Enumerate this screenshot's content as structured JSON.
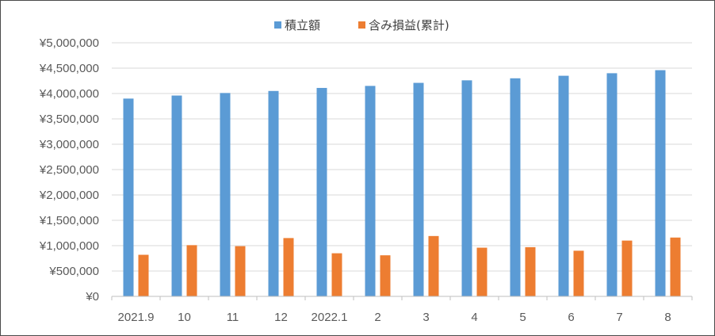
{
  "chart_data": {
    "type": "bar",
    "categories": [
      "2021.9",
      "10",
      "11",
      "12",
      "2022.1",
      "2",
      "3",
      "4",
      "5",
      "6",
      "7",
      "8"
    ],
    "series": [
      {
        "name": "積立額",
        "color": "#5B9BD5",
        "values": [
          3900000,
          3960000,
          4010000,
          4050000,
          4110000,
          4150000,
          4210000,
          4260000,
          4300000,
          4350000,
          4400000,
          4460000
        ]
      },
      {
        "name": "含み損益(累計)",
        "color": "#ED7D31",
        "values": [
          820000,
          1010000,
          990000,
          1150000,
          850000,
          810000,
          1190000,
          960000,
          970000,
          900000,
          1100000,
          1160000
        ]
      }
    ],
    "y_ticks": [
      "¥0",
      "¥500,000",
      "¥1,000,000",
      "¥1,500,000",
      "¥2,000,000",
      "¥2,500,000",
      "¥3,000,000",
      "¥3,500,000",
      "¥4,000,000",
      "¥4,500,000",
      "¥5,000,000"
    ],
    "ylim": [
      0,
      5000000
    ],
    "grid": true,
    "legend_position": "top"
  }
}
